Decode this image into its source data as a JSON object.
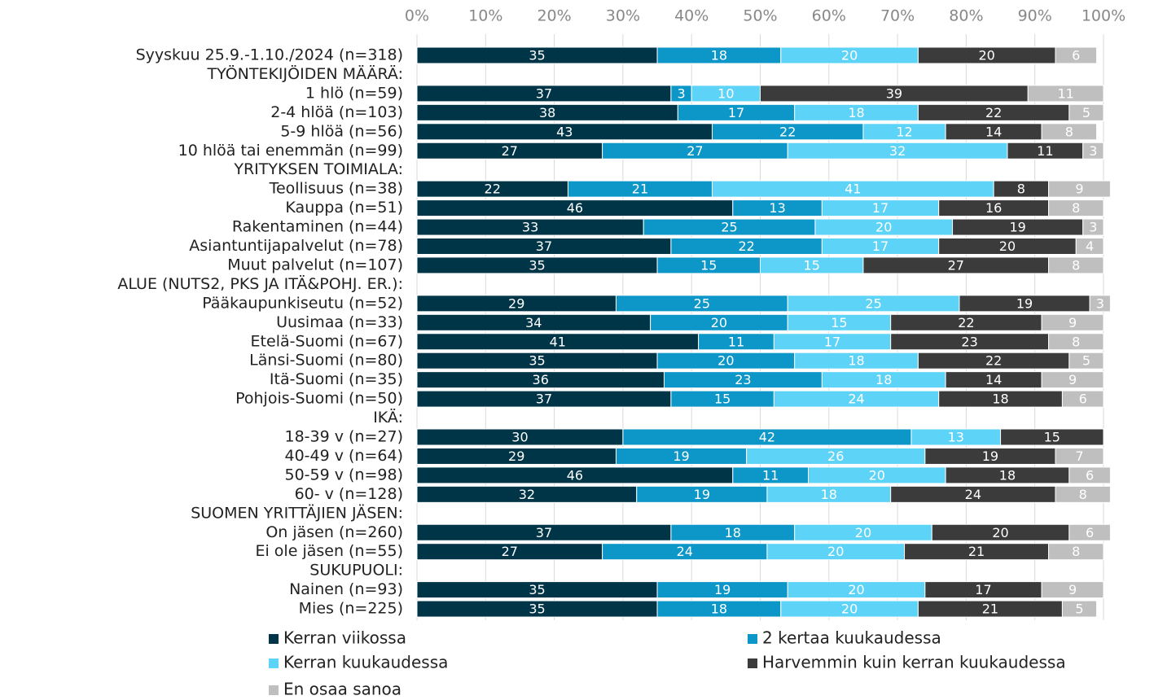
{
  "chart_data": {
    "type": "bar",
    "orientation": "horizontal",
    "stacked": true,
    "categories": [
      "Syyskuu 25.9.-1.10./2024 (n=318)",
      "TYÖNTEKIJÖIDEN MÄÄRÄ:",
      "1 hlö (n=59)",
      "2-4 hlöä (n=103)",
      "5-9 hlöä (n=56)",
      "10 hlöä tai enemmän (n=99)",
      "YRITYKSEN TOIMIALA:",
      "Teollisuus (n=38)",
      "Kauppa (n=51)",
      "Rakentaminen (n=44)",
      "Asiantuntijapalvelut (n=78)",
      "Muut palvelut (n=107)",
      "ALUE (NUTS2, PKS JA ITÄ&POHJ. ER.):",
      "Pääkaupunkiseutu (n=52)",
      "Uusimaa (n=33)",
      "Etelä-Suomi (n=67)",
      "Länsi-Suomi (n=80)",
      "Itä-Suomi (n=35)",
      "Pohjois-Suomi (n=50)",
      "IKÄ:",
      "18-39 v (n=27)",
      "40-49 v (n=64)",
      "50-59 v (n=98)",
      "60- v (n=128)",
      "SUOMEN YRITTÄJIEN JÄSEN:",
      "On jäsen (n=260)",
      "Ei ole jäsen (n=55)",
      "SUKUPUOLI:",
      "Nainen (n=93)",
      "Mies (n=225)"
    ],
    "series": [
      {
        "name": "Kerran viikossa",
        "color": "#003548",
        "values": [
          35,
          null,
          37,
          38,
          43,
          27,
          null,
          22,
          46,
          33,
          37,
          35,
          null,
          29,
          34,
          41,
          35,
          36,
          37,
          null,
          30,
          29,
          46,
          32,
          null,
          37,
          27,
          null,
          35,
          35
        ]
      },
      {
        "name": "2 kertaa kuukaudessa",
        "color": "#0d96c8",
        "values": [
          18,
          null,
          3,
          17,
          22,
          27,
          null,
          21,
          13,
          25,
          22,
          15,
          null,
          25,
          20,
          11,
          20,
          23,
          15,
          null,
          42,
          19,
          11,
          19,
          null,
          18,
          24,
          null,
          19,
          18
        ]
      },
      {
        "name": "Kerran kuukaudessa",
        "color": "#5cd3f7",
        "values": [
          20,
          null,
          10,
          18,
          12,
          32,
          null,
          41,
          17,
          20,
          17,
          15,
          null,
          25,
          15,
          17,
          18,
          18,
          24,
          null,
          13,
          26,
          20,
          18,
          null,
          20,
          20,
          null,
          20,
          20
        ]
      },
      {
        "name": "Harvemmin kuin kerran kuukaudessa",
        "color": "#3b3b3b",
        "values": [
          20,
          null,
          39,
          22,
          14,
          11,
          null,
          8,
          16,
          19,
          20,
          27,
          null,
          19,
          22,
          23,
          22,
          14,
          18,
          null,
          15,
          19,
          18,
          24,
          null,
          20,
          21,
          null,
          17,
          21
        ]
      },
      {
        "name": "En osaa sanoa",
        "color": "#bfbfbf",
        "values": [
          6,
          null,
          11,
          5,
          8,
          3,
          null,
          9,
          8,
          3,
          4,
          8,
          null,
          3,
          9,
          8,
          5,
          9,
          6,
          null,
          null,
          7,
          6,
          8,
          null,
          6,
          8,
          null,
          9,
          5
        ]
      }
    ],
    "xlim": [
      0,
      100
    ],
    "xticks": [
      {
        "value": 0,
        "label": "0%"
      },
      {
        "value": 10,
        "label": "10%"
      },
      {
        "value": 20,
        "label": "20%"
      },
      {
        "value": 30,
        "label": "30%"
      },
      {
        "value": 40,
        "label": "40%"
      },
      {
        "value": 50,
        "label": "50%"
      },
      {
        "value": 60,
        "label": "60%"
      },
      {
        "value": 70,
        "label": "70%"
      },
      {
        "value": 80,
        "label": "80%"
      },
      {
        "value": 90,
        "label": "90%"
      },
      {
        "value": 100,
        "label": "100%"
      }
    ],
    "grid": true,
    "legend": "bottom"
  }
}
